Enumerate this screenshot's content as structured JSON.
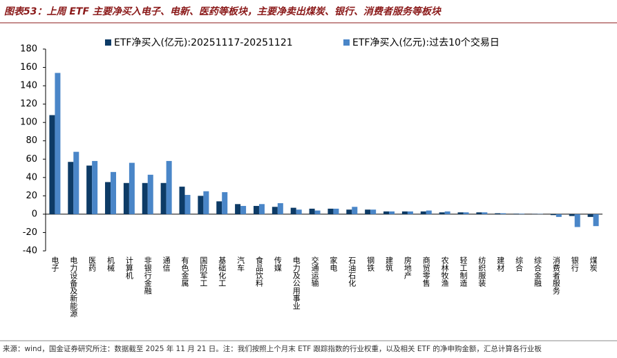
{
  "chart_data": {
    "type": "bar",
    "title": "图表53：上周 ETF 主要净买入电子、电新、医药等板块，主要净卖出煤炭、银行、消费者服务等板块",
    "footnote": "来源：wind，国金证券研究所注：数据截至 2025 年 11 月 21 日。注：我们按照上个月末 ETF 跟踪指数的行业权重，以及相关 ETF 的净申购金额，汇总计算各行业板",
    "categories": [
      "电子",
      "电力设备及新能源",
      "医药",
      "机械",
      "计算机",
      "非银行金融",
      "通信",
      "有色金属",
      "国防军工",
      "基础化工",
      "汽车",
      "食品饮料",
      "传媒",
      "电力及公用事业",
      "交通运输",
      "家电",
      "石油石化",
      "钢铁",
      "建筑",
      "房地产",
      "商贸零售",
      "农林牧渔",
      "轻工制造",
      "纺织服装",
      "建材",
      "综合",
      "综合金融",
      "消费者服务",
      "银行",
      "煤炭"
    ],
    "series": [
      {
        "name": "ETF净买入(亿元):20251117-20251121",
        "color": "#0d3b66",
        "values": [
          108,
          57,
          53,
          35,
          34,
          34,
          34,
          30,
          20,
          14,
          11,
          9,
          8,
          7,
          6,
          6,
          5,
          5,
          3,
          3,
          3,
          2,
          2,
          2,
          1,
          0.5,
          0.3,
          -1,
          -2,
          -3
        ]
      },
      {
        "name": "ETF净买入(亿元):过去10个交易日",
        "color": "#4a86c8",
        "values": [
          154,
          68,
          58,
          46,
          56,
          43,
          58,
          21,
          25,
          24,
          9,
          11,
          12,
          5,
          4,
          6,
          8,
          5,
          3,
          3,
          4,
          3,
          2,
          2,
          1,
          0.5,
          0.3,
          -3,
          -14,
          -13
        ]
      }
    ],
    "ylim": [
      -40,
      180
    ],
    "yticks": [
      -40,
      -20,
      0,
      20,
      40,
      60,
      80,
      100,
      120,
      140,
      160,
      180
    ]
  }
}
